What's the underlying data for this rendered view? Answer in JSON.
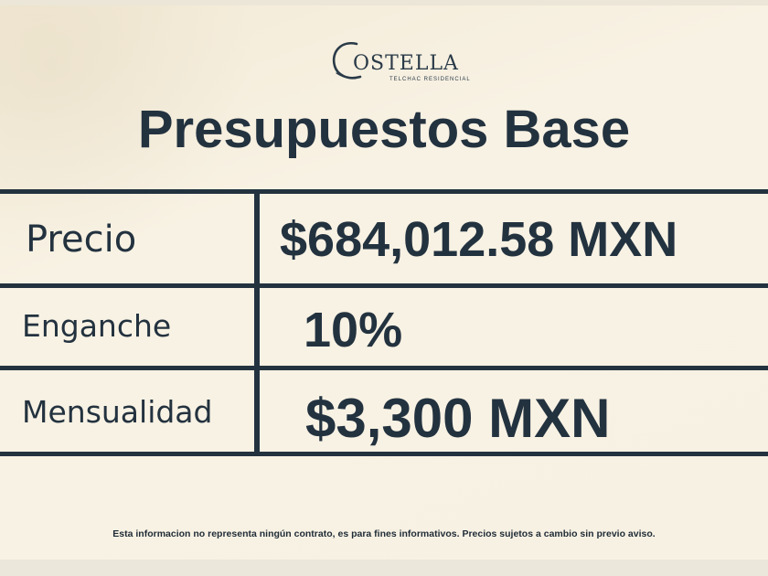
{
  "logo": {
    "brand": "OSTELLA",
    "initial": "C",
    "subtitle": "TELCHAC RESIDENCIAL"
  },
  "title": "Presupuestos Base",
  "rows": [
    {
      "label": "Precio",
      "value": "$684,012.58 MXN"
    },
    {
      "label": "Enganche",
      "value": "10%"
    },
    {
      "label": "Mensualidad",
      "value": "$3,300 MXN"
    }
  ],
  "disclaimer": "Esta informacion no representa ningún contrato, es para fines informativos. Precios sujetos a cambio sin previo aviso.",
  "colors": {
    "background": "#f6f0e2",
    "ink": "#23323f"
  }
}
